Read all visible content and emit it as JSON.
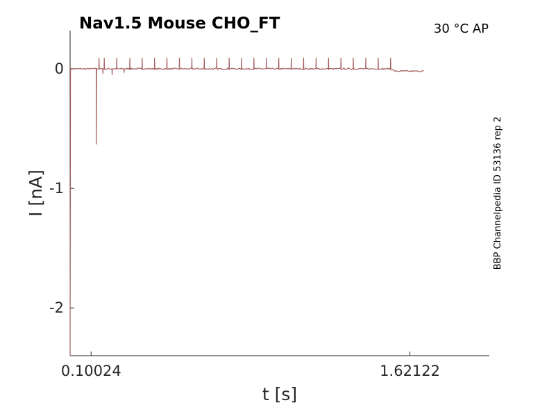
{
  "chart_data": {
    "type": "line",
    "title": "Nav1.5  Mouse  CHO_FT",
    "condition": "30 °C  AP",
    "source_label": "BBP Channelpedia ID 53136 rep 2",
    "xlabel": "t [s]",
    "ylabel": "I [nA]",
    "xlim": [
      0.0,
      2.0
    ],
    "ylim": [
      -2.4,
      0.32
    ],
    "x_ticks": [
      {
        "value": 0.10024,
        "label": "0.10024"
      },
      {
        "value": 1.62122,
        "label": "1.62122"
      }
    ],
    "y_ticks": [
      {
        "value": 0,
        "label": "0"
      },
      {
        "value": -1,
        "label": "-1"
      },
      {
        "value": -2,
        "label": "-2"
      }
    ],
    "grid": false,
    "series": [
      {
        "color": "#a05a5a",
        "baseline": 0.0,
        "initial_transient": {
          "x": 0.0,
          "y": -2.4
        },
        "main_spike": {
          "x": 0.1255,
          "y": -0.63
        },
        "early_spikes": [
          {
            "x": 0.1565,
            "y": -0.04
          },
          {
            "x": 0.2005,
            "y": -0.05
          },
          {
            "x": 0.258,
            "y": -0.03
          }
        ],
        "upward_spikes_x": [
          0.138,
          0.163,
          0.2225,
          0.285,
          0.344,
          0.403,
          0.462,
          0.5215,
          0.581,
          0.64,
          0.6995,
          0.759,
          0.818,
          0.877,
          0.936,
          0.9955,
          1.055,
          1.114,
          1.1735,
          1.233,
          1.292,
          1.351,
          1.4105,
          1.47,
          1.529
        ],
        "upward_spike_height": 0.09,
        "end_offset": {
          "start_x": 1.53,
          "level": -0.02,
          "x_end": 1.69
        }
      }
    ]
  }
}
